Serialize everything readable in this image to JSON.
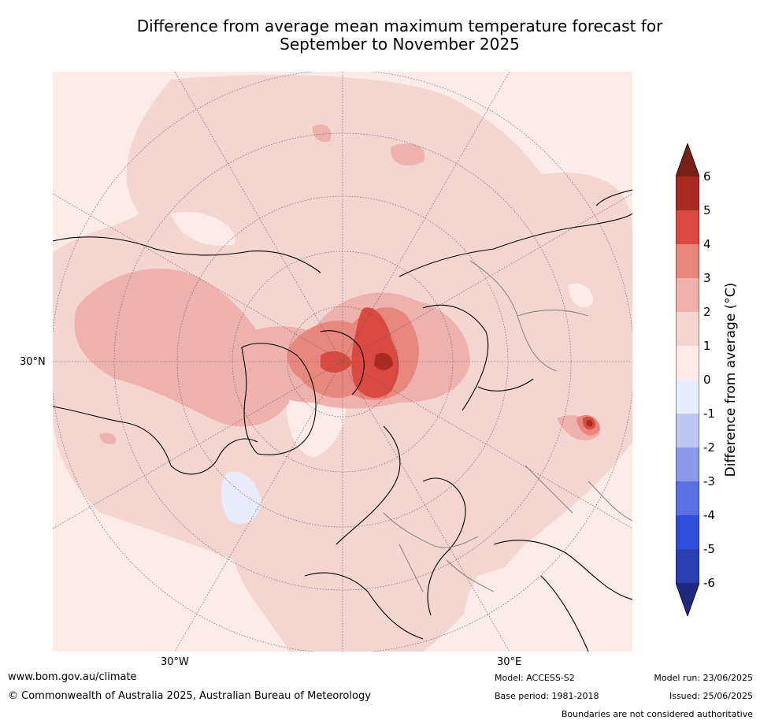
{
  "title": {
    "line1": "Difference from average mean maximum temperature forecast for",
    "line2": "September to November 2025"
  },
  "map": {
    "projection": "polar-stereographic-north",
    "lat_labels": [
      "30°N"
    ],
    "lon_labels": [
      "30°W",
      "30°E"
    ]
  },
  "colorbar": {
    "title": "Difference from average (°C)",
    "ticks": [
      "6",
      "5",
      "4",
      "3",
      "2",
      "1",
      "0",
      "-1",
      "-2",
      "-3",
      "-4",
      "-5",
      "-6"
    ],
    "colors": {
      "over": "#7a1e18",
      "5_6": "#a82a22",
      "4_5": "#db4a40",
      "3_4": "#e8877d",
      "2_3": "#eeb1ab",
      "1_2": "#f5d5d2",
      "0_1": "#fcebe8",
      "m1_0": "#e8ecfb",
      "m2_m1": "#c0c8f1",
      "m3_m2": "#8a9ae8",
      "m4_m3": "#5a70e0",
      "m5_m4": "#2e4edb",
      "m6_m5": "#2a3fad",
      "under": "#1e2a80"
    }
  },
  "footer": {
    "url": "www.bom.gov.au/climate",
    "copyright": "© Commonwealth of Australia 2025, Australian Bureau of Meteorology",
    "model": "Model: ACCESS-S2",
    "base_period": "Base period: 1981-2018",
    "model_run": "Model run: 23/06/2025",
    "issued": "Issued: 25/06/2025",
    "disclaimer": "Boundaries are not considered authoritative"
  }
}
